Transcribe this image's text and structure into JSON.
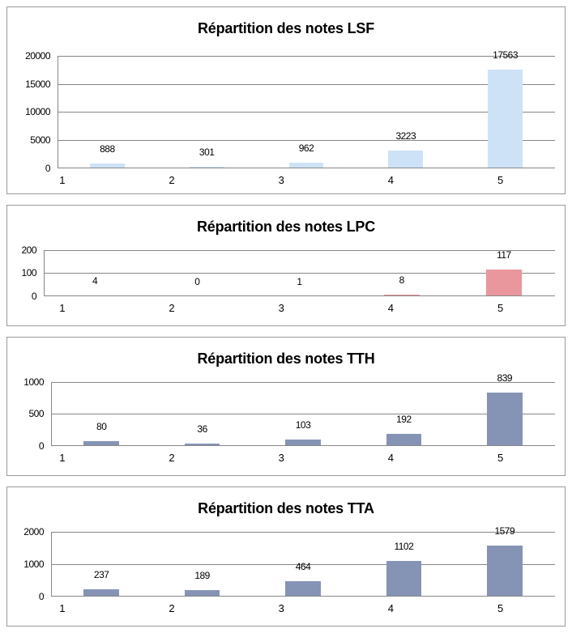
{
  "page": {
    "background": "#ffffff",
    "panel_border": "#9a9a9a",
    "grid_color": "#878787",
    "text_color": "#000000"
  },
  "chart_data": [
    {
      "type": "bar",
      "title": "Répartition des notes LSF",
      "categories": [
        "1",
        "2",
        "3",
        "4",
        "5"
      ],
      "values": [
        888,
        301,
        962,
        3223,
        17563
      ],
      "bar_color": "#cde2f6",
      "ylim": [
        0,
        20000
      ],
      "yticks": [
        0,
        5000,
        10000,
        15000,
        20000
      ],
      "grid": true,
      "legend": "none",
      "xlabel": "",
      "ylabel": ""
    },
    {
      "type": "bar",
      "title": "Répartition des notes LPC",
      "categories": [
        "1",
        "2",
        "3",
        "4",
        "5"
      ],
      "values": [
        4,
        0,
        1,
        8,
        117
      ],
      "bar_color": "#e9969c",
      "ylim": [
        0,
        200
      ],
      "yticks": [
        0,
        100,
        200
      ],
      "grid": true,
      "legend": "none",
      "xlabel": "",
      "ylabel": ""
    },
    {
      "type": "bar",
      "title": "Répartition des notes TTH",
      "categories": [
        "1",
        "2",
        "3",
        "4",
        "5"
      ],
      "values": [
        80,
        36,
        103,
        192,
        839
      ],
      "bar_color": "#8594b5",
      "ylim": [
        0,
        1000
      ],
      "yticks": [
        0,
        500,
        1000
      ],
      "grid": true,
      "legend": "none",
      "xlabel": "",
      "ylabel": ""
    },
    {
      "type": "bar",
      "title": "Répartition des notes TTA",
      "categories": [
        "1",
        "2",
        "3",
        "4",
        "5"
      ],
      "values": [
        237,
        189,
        464,
        1102,
        1579
      ],
      "bar_color": "#8594b5",
      "ylim": [
        0,
        2000
      ],
      "yticks": [
        0,
        1000,
        2000
      ],
      "grid": true,
      "legend": "none",
      "xlabel": "",
      "ylabel": ""
    }
  ]
}
